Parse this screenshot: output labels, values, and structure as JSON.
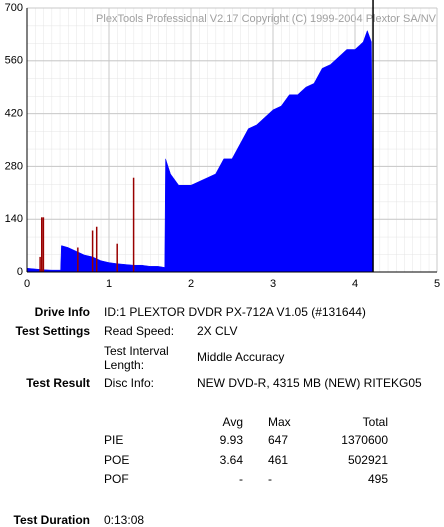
{
  "chart_data": {
    "type": "area",
    "title": "PlexTools Professional V2.17 Copyright (C) 1999-2004 Plextor SA/NV",
    "xlim": [
      0,
      5
    ],
    "xticks": [
      0,
      1,
      2,
      3,
      4,
      5
    ],
    "ylim": [
      0,
      700
    ],
    "yticks": [
      0,
      140,
      280,
      420,
      560,
      700
    ],
    "grid": true,
    "series": [
      {
        "color": "#0000ff",
        "style": "area",
        "x": [
          0,
          0.1,
          0.2,
          0.3,
          0.41,
          0.42,
          0.5,
          0.6,
          0.7,
          0.8,
          0.9,
          1.0,
          1.1,
          1.2,
          1.3,
          1.4,
          1.5,
          1.6,
          1.68,
          1.69,
          1.75,
          1.85,
          2.0,
          2.1,
          2.2,
          2.3,
          2.4,
          2.5,
          2.6,
          2.7,
          2.8,
          2.9,
          3.0,
          3.1,
          3.2,
          3.3,
          3.4,
          3.5,
          3.6,
          3.7,
          3.8,
          3.9,
          4.0,
          4.1,
          4.15,
          4.2,
          4.22
        ],
        "values": [
          10,
          8,
          6,
          5,
          5,
          70,
          65,
          55,
          45,
          40,
          30,
          25,
          22,
          20,
          18,
          18,
          15,
          15,
          12,
          300,
          260,
          230,
          230,
          240,
          250,
          260,
          300,
          300,
          340,
          380,
          390,
          410,
          430,
          440,
          470,
          470,
          490,
          500,
          540,
          550,
          570,
          590,
          590,
          610,
          640,
          610,
          0
        ]
      },
      {
        "color": "#990000",
        "style": "spikes",
        "x": [
          0.16,
          0.18,
          0.2,
          0.62,
          0.8,
          0.85,
          1.1,
          1.3
        ],
        "values": [
          40,
          145,
          145,
          65,
          110,
          120,
          75,
          250
        ]
      }
    ],
    "position_marker": 4.22,
    "marker_color": "#000000"
  },
  "info": {
    "drive_info": {
      "label": "Drive Info",
      "value": "ID:1 PLEXTOR DVDR PX-712A V1.05 (#131644)"
    },
    "test_settings": {
      "label": "Test Settings",
      "items": [
        [
          "Read Speed:",
          "2X CLV"
        ],
        [
          "Test Interval Length:",
          "Middle Accuracy"
        ]
      ]
    },
    "test_result": {
      "label": "Test Result",
      "key": "Disc Info:",
      "value": "NEW DVD-R, 4315 MB (NEW) RITEKG05"
    },
    "stats": {
      "header": [
        "Avg",
        "Max",
        "Total"
      ],
      "rows": [
        [
          "PIE",
          "9.93",
          "647",
          "1370600"
        ],
        [
          "POE",
          "3.64",
          "461",
          "502921"
        ],
        [
          "POF",
          "-",
          "-",
          "495"
        ]
      ]
    },
    "test_duration": {
      "label": "Test Duration",
      "value": "0:13:08"
    }
  }
}
